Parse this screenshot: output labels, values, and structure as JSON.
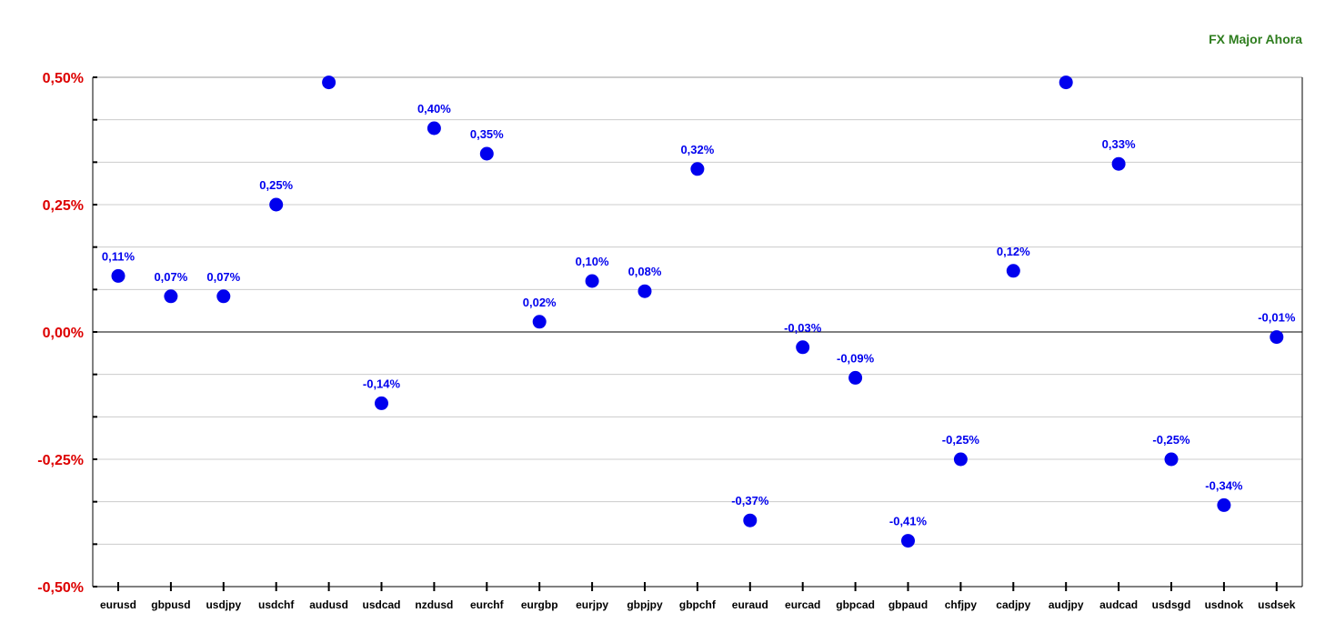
{
  "chart_data": {
    "type": "scatter",
    "title": "FX Major Ahora",
    "categories": [
      "eurusd",
      "gbpusd",
      "usdjpy",
      "usdchf",
      "audusd",
      "usdcad",
      "nzdusd",
      "eurchf",
      "eurgbp",
      "eurjpy",
      "gbpjpy",
      "gbpchf",
      "euraud",
      "eurcad",
      "gbpcad",
      "gbpaud",
      "chfjpy",
      "cadjpy",
      "audjpy",
      "audcad",
      "usdsgd",
      "usdnok",
      "usdsek"
    ],
    "values": [
      0.11,
      0.07,
      0.07,
      0.25,
      0.49,
      -0.14,
      0.4,
      0.35,
      0.02,
      0.1,
      0.08,
      0.32,
      -0.37,
      -0.03,
      -0.09,
      -0.41,
      -0.25,
      0.12,
      0.49,
      0.33,
      -0.25,
      -0.34,
      -0.01
    ],
    "data_labels": [
      "0,11%",
      "0,07%",
      "0,07%",
      "0,25%",
      "",
      "-0,14%",
      "0,40%",
      "0,35%",
      "0,02%",
      "0,10%",
      "0,08%",
      "0,32%",
      "-0,37%",
      "-0,03%",
      "-0,09%",
      "-0,41%",
      "-0,25%",
      "0,12%",
      "",
      "0,33%",
      "-0,25%",
      "-0,34%",
      "-0,01%"
    ],
    "y_ticks": [
      0.5,
      0.25,
      0,
      -0.25,
      -0.5
    ],
    "y_tick_labels": [
      "0,50%",
      "0,25%",
      "0,00%",
      "-0,25%",
      "-0,50%"
    ],
    "ylim": [
      -0.5,
      0.5
    ],
    "xlabel": "",
    "ylabel": "",
    "grid": true,
    "colors": {
      "marker": "#0000ee",
      "data_label": "#0000ee",
      "y_tick_label": "#dd0000",
      "title": "#2e7d1e",
      "gridline": "#cccccc",
      "axis": "#000000"
    }
  }
}
